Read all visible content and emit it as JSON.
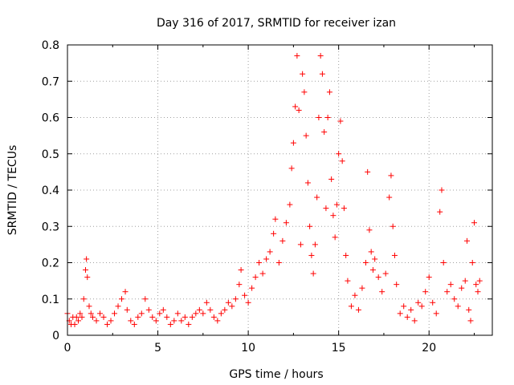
{
  "chart_data": {
    "type": "scatter",
    "title": "Day 316 of 2017, SRMTID for receiver izan",
    "xlabel": "GPS time / hours",
    "ylabel": "SRMTID / TECUs",
    "xlim": [
      0,
      23.5
    ],
    "ylim": [
      0,
      0.8
    ],
    "xticks": [
      0,
      5,
      10,
      15,
      20
    ],
    "xtick_labels": [
      "0",
      "5",
      "10",
      "15",
      "20"
    ],
    "yticks": [
      0,
      0.1,
      0.2,
      0.3,
      0.4,
      0.5,
      0.6,
      0.7,
      0.8
    ],
    "ytick_labels": [
      "0",
      "0.1",
      "0.2",
      "0.3",
      "0.4",
      "0.5",
      "0.6",
      "0.7",
      "0.8"
    ],
    "grid": true,
    "marker": "plus",
    "series": [
      {
        "name": "SRMTID",
        "color": "#ff0000",
        "points": [
          [
            0.0,
            0.06
          ],
          [
            0.1,
            0.04
          ],
          [
            0.2,
            0.03
          ],
          [
            0.3,
            0.05
          ],
          [
            0.4,
            0.03
          ],
          [
            0.5,
            0.05
          ],
          [
            0.6,
            0.04
          ],
          [
            0.7,
            0.06
          ],
          [
            0.8,
            0.05
          ],
          [
            0.9,
            0.1
          ],
          [
            1.0,
            0.18
          ],
          [
            1.05,
            0.21
          ],
          [
            1.1,
            0.16
          ],
          [
            1.2,
            0.08
          ],
          [
            1.3,
            0.06
          ],
          [
            1.4,
            0.05
          ],
          [
            1.6,
            0.04
          ],
          [
            1.8,
            0.06
          ],
          [
            2.0,
            0.05
          ],
          [
            2.2,
            0.03
          ],
          [
            2.4,
            0.04
          ],
          [
            2.6,
            0.06
          ],
          [
            2.8,
            0.08
          ],
          [
            3.0,
            0.1
          ],
          [
            3.2,
            0.12
          ],
          [
            3.3,
            0.07
          ],
          [
            3.5,
            0.04
          ],
          [
            3.7,
            0.03
          ],
          [
            3.9,
            0.05
          ],
          [
            4.1,
            0.06
          ],
          [
            4.3,
            0.1
          ],
          [
            4.5,
            0.07
          ],
          [
            4.7,
            0.05
          ],
          [
            4.9,
            0.04
          ],
          [
            5.1,
            0.06
          ],
          [
            5.3,
            0.07
          ],
          [
            5.5,
            0.05
          ],
          [
            5.7,
            0.03
          ],
          [
            5.9,
            0.04
          ],
          [
            6.1,
            0.06
          ],
          [
            6.3,
            0.04
          ],
          [
            6.5,
            0.05
          ],
          [
            6.7,
            0.03
          ],
          [
            6.9,
            0.05
          ],
          [
            7.1,
            0.06
          ],
          [
            7.3,
            0.07
          ],
          [
            7.5,
            0.06
          ],
          [
            7.7,
            0.09
          ],
          [
            7.9,
            0.07
          ],
          [
            8.1,
            0.05
          ],
          [
            8.3,
            0.04
          ],
          [
            8.5,
            0.06
          ],
          [
            8.7,
            0.07
          ],
          [
            8.9,
            0.09
          ],
          [
            9.1,
            0.08
          ],
          [
            9.3,
            0.1
          ],
          [
            9.5,
            0.14
          ],
          [
            9.6,
            0.18
          ],
          [
            9.8,
            0.11
          ],
          [
            10.0,
            0.09
          ],
          [
            10.2,
            0.13
          ],
          [
            10.4,
            0.16
          ],
          [
            10.6,
            0.2
          ],
          [
            10.8,
            0.17
          ],
          [
            11.0,
            0.21
          ],
          [
            11.2,
            0.23
          ],
          [
            11.4,
            0.28
          ],
          [
            11.5,
            0.32
          ],
          [
            11.7,
            0.2
          ],
          [
            11.9,
            0.26
          ],
          [
            12.1,
            0.31
          ],
          [
            12.3,
            0.36
          ],
          [
            12.4,
            0.46
          ],
          [
            12.5,
            0.53
          ],
          [
            12.6,
            0.63
          ],
          [
            12.7,
            0.77
          ],
          [
            12.8,
            0.62
          ],
          [
            12.9,
            0.25
          ],
          [
            13.0,
            0.72
          ],
          [
            13.1,
            0.67
          ],
          [
            13.2,
            0.55
          ],
          [
            13.3,
            0.42
          ],
          [
            13.4,
            0.3
          ],
          [
            13.5,
            0.22
          ],
          [
            13.6,
            0.17
          ],
          [
            13.7,
            0.25
          ],
          [
            13.8,
            0.38
          ],
          [
            13.9,
            0.6
          ],
          [
            14.0,
            0.77
          ],
          [
            14.1,
            0.72
          ],
          [
            14.2,
            0.56
          ],
          [
            14.3,
            0.35
          ],
          [
            14.4,
            0.6
          ],
          [
            14.5,
            0.67
          ],
          [
            14.6,
            0.43
          ],
          [
            14.7,
            0.33
          ],
          [
            14.8,
            0.27
          ],
          [
            14.9,
            0.36
          ],
          [
            15.0,
            0.5
          ],
          [
            15.1,
            0.59
          ],
          [
            15.2,
            0.48
          ],
          [
            15.3,
            0.35
          ],
          [
            15.4,
            0.22
          ],
          [
            15.5,
            0.15
          ],
          [
            15.7,
            0.08
          ],
          [
            15.9,
            0.11
          ],
          [
            16.1,
            0.07
          ],
          [
            16.3,
            0.13
          ],
          [
            16.5,
            0.2
          ],
          [
            16.6,
            0.45
          ],
          [
            16.7,
            0.29
          ],
          [
            16.8,
            0.23
          ],
          [
            16.9,
            0.18
          ],
          [
            17.0,
            0.21
          ],
          [
            17.2,
            0.16
          ],
          [
            17.4,
            0.12
          ],
          [
            17.6,
            0.17
          ],
          [
            17.8,
            0.38
          ],
          [
            17.9,
            0.44
          ],
          [
            18.0,
            0.3
          ],
          [
            18.1,
            0.22
          ],
          [
            18.2,
            0.14
          ],
          [
            18.4,
            0.06
          ],
          [
            18.6,
            0.08
          ],
          [
            18.8,
            0.05
          ],
          [
            19.0,
            0.07
          ],
          [
            19.2,
            0.04
          ],
          [
            19.4,
            0.09
          ],
          [
            19.6,
            0.08
          ],
          [
            19.8,
            0.12
          ],
          [
            20.0,
            0.16
          ],
          [
            20.2,
            0.09
          ],
          [
            20.4,
            0.06
          ],
          [
            20.6,
            0.34
          ],
          [
            20.7,
            0.4
          ],
          [
            20.8,
            0.2
          ],
          [
            21.0,
            0.12
          ],
          [
            21.2,
            0.14
          ],
          [
            21.4,
            0.1
          ],
          [
            21.6,
            0.08
          ],
          [
            21.8,
            0.13
          ],
          [
            22.0,
            0.15
          ],
          [
            22.1,
            0.26
          ],
          [
            22.2,
            0.07
          ],
          [
            22.3,
            0.04
          ],
          [
            22.4,
            0.2
          ],
          [
            22.5,
            0.31
          ],
          [
            22.6,
            0.14
          ],
          [
            22.7,
            0.12
          ],
          [
            22.8,
            0.15
          ]
        ]
      }
    ]
  }
}
